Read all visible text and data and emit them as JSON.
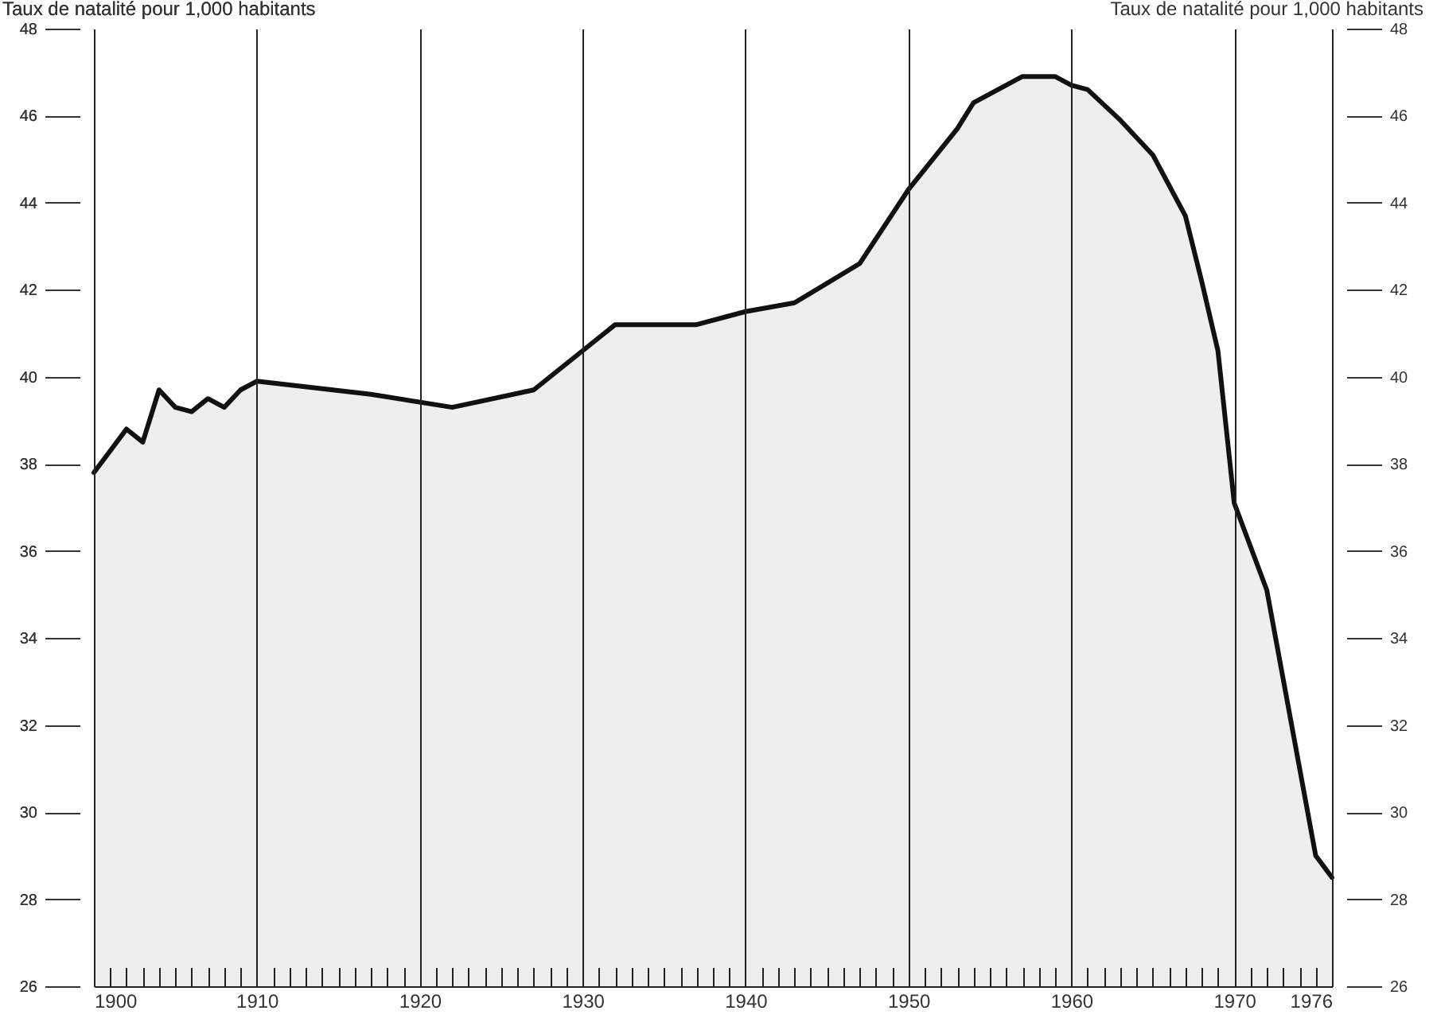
{
  "chart_data": {
    "type": "area",
    "ylabel": "Taux de natalité pour 1,000 habitants",
    "y2label": "Taux de natalité pour 1,000 habitants",
    "series": [
      {
        "color": "#111111",
        "x": [
          1900,
          1902,
          1903,
          1904,
          1905,
          1906,
          1907,
          1908,
          1909,
          1910,
          1917,
          1922,
          1927,
          1932,
          1937,
          1940,
          1943,
          1947,
          1950,
          1953,
          1954,
          1955,
          1957,
          1959,
          1960,
          1961,
          1963,
          1965,
          1967,
          1968,
          1969,
          1970,
          1972,
          1975,
          1976
        ],
        "values": [
          37.8,
          38.8,
          38.5,
          39.7,
          39.3,
          39.2,
          39.5,
          39.3,
          39.7,
          39.9,
          39.6,
          39.3,
          39.7,
          41.2,
          41.2,
          41.5,
          41.7,
          42.6,
          44.3,
          45.7,
          46.3,
          46.5,
          46.9,
          46.9,
          46.7,
          46.6,
          45.9,
          45.1,
          43.7,
          42.2,
          40.6,
          37.1,
          35.1,
          29.0,
          28.5
        ]
      }
    ],
    "xlim": [
      1900,
      1976
    ],
    "xticks": [
      1900,
      {
        "value": 1901,
        "label": null
      },
      {
        "value": 1902,
        "label": null
      },
      {
        "value": 1903,
        "label": null
      },
      {
        "value": 1904,
        "label": null
      },
      {
        "value": 1905,
        "label": null
      },
      {
        "value": 1906,
        "label": null
      },
      {
        "value": 1907,
        "label": null
      },
      {
        "value": 1908,
        "label": null
      },
      {
        "value": 1909,
        "label": null
      },
      1910,
      {
        "value": 1911,
        "label": null
      },
      {
        "value": 1912,
        "label": null
      },
      {
        "value": 1913,
        "label": null
      },
      {
        "value": 1914,
        "label": null
      },
      {
        "value": 1915,
        "label": null
      },
      {
        "value": 1916,
        "label": null
      },
      {
        "value": 1917,
        "label": null
      },
      {
        "value": 1918,
        "label": null
      },
      {
        "value": 1919,
        "label": null
      },
      1920,
      {
        "value": 1921,
        "label": null
      },
      {
        "value": 1922,
        "label": null
      },
      {
        "value": 1923,
        "label": null
      },
      {
        "value": 1924,
        "label": null
      },
      {
        "value": 1925,
        "label": null
      },
      {
        "value": 1926,
        "label": null
      },
      {
        "value": 1927,
        "label": null
      },
      {
        "value": 1928,
        "label": null
      },
      {
        "value": 1929,
        "label": null
      },
      1930,
      {
        "value": 1931,
        "label": null
      },
      {
        "value": 1932,
        "label": null
      },
      {
        "value": 1933,
        "label": null
      },
      {
        "value": 1934,
        "label": null
      },
      {
        "value": 1935,
        "label": null
      },
      {
        "value": 1936,
        "label": null
      },
      {
        "value": 1937,
        "label": null
      },
      {
        "value": 1938,
        "label": null
      },
      {
        "value": 1939,
        "label": null
      },
      1940,
      {
        "value": 1941,
        "label": null
      },
      {
        "value": 1942,
        "label": null
      },
      {
        "value": 1943,
        "label": null
      },
      {
        "value": 1944,
        "label": null
      },
      {
        "value": 1945,
        "label": null
      },
      {
        "value": 1946,
        "label": null
      },
      {
        "value": 1947,
        "label": null
      },
      {
        "value": 1948,
        "label": null
      },
      {
        "value": 1949,
        "label": null
      },
      1950,
      {
        "value": 1951,
        "label": null
      },
      {
        "value": 1952,
        "label": null
      },
      {
        "value": 1953,
        "label": null
      },
      {
        "value": 1954,
        "label": null
      },
      {
        "value": 1955,
        "label": null
      },
      {
        "value": 1956,
        "label": null
      },
      {
        "value": 1957,
        "label": null
      },
      {
        "value": 1958,
        "label": null
      },
      {
        "value": 1959,
        "label": null
      },
      1960,
      {
        "value": 1961,
        "label": null
      },
      {
        "value": 1962,
        "label": null
      },
      {
        "value": 1963,
        "label": null
      },
      {
        "value": 1964,
        "label": null
      },
      {
        "value": 1965,
        "label": null
      },
      {
        "value": 1966,
        "label": null
      },
      {
        "value": 1967,
        "label": null
      },
      {
        "value": 1968,
        "label": null
      },
      {
        "value": 1969,
        "label": null
      },
      1970,
      {
        "value": 1971,
        "label": null
      },
      {
        "value": 1972,
        "label": null
      },
      {
        "value": 1973,
        "label": null
      },
      {
        "value": 1974,
        "label": null
      },
      {
        "value": 1975,
        "label": null
      },
      1976
    ],
    "ylim": [
      26,
      48
    ],
    "yticks": [
      26,
      28,
      30,
      32,
      34,
      36,
      38,
      40,
      42,
      44,
      46,
      48
    ],
    "y2lim": [
      26,
      48
    ],
    "y2ticks": [
      26,
      28,
      30,
      32,
      34,
      36,
      38,
      40,
      42,
      44,
      46,
      48
    ],
    "grid": "x"
  }
}
